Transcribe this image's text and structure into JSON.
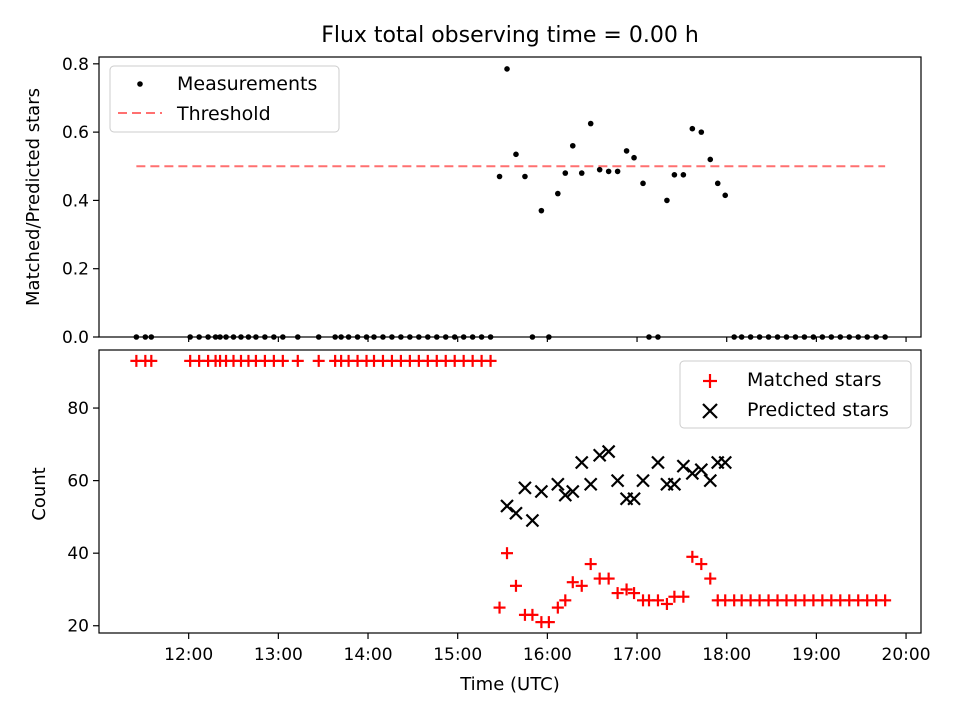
{
  "chart_data": [
    {
      "type": "scatter",
      "title": "Flux total observing time = 0.00 h",
      "ylabel": "Matched/Predicted stars",
      "xlim": [
        "11:00",
        "20:10"
      ],
      "ylim": [
        0,
        0.82
      ],
      "yticks": [
        "0.0",
        "0.2",
        "0.4",
        "0.6",
        "0.8"
      ],
      "grid": false,
      "legend_position": "top-left",
      "series": [
        {
          "name": "Measurements",
          "marker": "dot",
          "color": "#000000",
          "x": [
            "11:25",
            "11:31",
            "11:35",
            "12:01",
            "12:07",
            "12:13",
            "12:18",
            "12:21",
            "12:25",
            "12:30",
            "12:35",
            "12:40",
            "12:45",
            "12:51",
            "12:57",
            "13:03",
            "13:13",
            "13:27",
            "13:38",
            "13:42",
            "13:47",
            "13:53",
            "13:59",
            "14:04",
            "14:10",
            "14:16",
            "14:22",
            "14:28",
            "14:34",
            "14:40",
            "14:46",
            "14:52",
            "14:58",
            "15:04",
            "15:10",
            "15:16",
            "15:22",
            "15:28",
            "15:33",
            "15:39",
            "15:45",
            "15:50",
            "15:56",
            "16:01",
            "16:07",
            "16:12",
            "16:17",
            "16:23",
            "16:29",
            "16:35",
            "16:41",
            "16:47",
            "16:53",
            "16:58",
            "17:04",
            "17:08",
            "17:14",
            "17:20",
            "17:25",
            "17:31",
            "17:37",
            "17:43",
            "17:49",
            "17:54",
            "17:59",
            "18:05",
            "18:10",
            "18:16",
            "18:22",
            "18:28",
            "18:34",
            "18:40",
            "18:46",
            "18:52",
            "18:58",
            "19:04",
            "19:10",
            "19:16",
            "19:22",
            "19:28",
            "19:34",
            "19:40",
            "19:46"
          ],
          "y": [
            0,
            0,
            0,
            0,
            0,
            0,
            0,
            0,
            0,
            0,
            0,
            0,
            0,
            0,
            0,
            0,
            0,
            0,
            0,
            0,
            0,
            0,
            0,
            0,
            0,
            0,
            0,
            0,
            0,
            0,
            0,
            0,
            0,
            0,
            0,
            0,
            0,
            0.47,
            0.785,
            0.535,
            0.47,
            0,
            0.37,
            0,
            0.42,
            0.48,
            0.56,
            0.48,
            0.625,
            0.49,
            0.485,
            0.485,
            0.545,
            0.525,
            0.45,
            0,
            0,
            0.4,
            0.475,
            0.475,
            0.61,
            0.6,
            0.52,
            0.45,
            0.415,
            0,
            0,
            0,
            0,
            0,
            0,
            0,
            0,
            0,
            0,
            0,
            0,
            0,
            0,
            0,
            0,
            0,
            0
          ]
        },
        {
          "name": "Threshold",
          "marker": "dashed-line",
          "color": "#ff7070",
          "x": [
            "11:25",
            "19:46"
          ],
          "y": [
            0.5,
            0.5
          ]
        }
      ]
    },
    {
      "type": "scatter",
      "xlabel": "Time (UTC)",
      "ylabel": "Count",
      "xlim": [
        "11:00",
        "20:10"
      ],
      "ylim": [
        18,
        96
      ],
      "xticks": [
        "12:00",
        "13:00",
        "14:00",
        "15:00",
        "16:00",
        "17:00",
        "18:00",
        "19:00",
        "20:00"
      ],
      "yticks": [
        "20",
        "40",
        "60",
        "80"
      ],
      "grid": false,
      "legend_position": "top-right",
      "series": [
        {
          "name": "Matched stars",
          "marker": "plus",
          "color": "#ff0000",
          "x": [
            "11:25",
            "11:31",
            "11:35",
            "12:01",
            "12:07",
            "12:13",
            "12:18",
            "12:21",
            "12:25",
            "12:30",
            "12:35",
            "12:40",
            "12:45",
            "12:51",
            "12:57",
            "13:03",
            "13:13",
            "13:27",
            "13:38",
            "13:42",
            "13:47",
            "13:53",
            "13:59",
            "14:04",
            "14:10",
            "14:16",
            "14:22",
            "14:28",
            "14:34",
            "14:40",
            "14:46",
            "14:52",
            "14:58",
            "15:04",
            "15:10",
            "15:16",
            "15:22",
            "15:28",
            "15:33",
            "15:39",
            "15:45",
            "15:50",
            "15:56",
            "16:01",
            "16:07",
            "16:12",
            "16:17",
            "16:23",
            "16:29",
            "16:35",
            "16:41",
            "16:47",
            "16:53",
            "16:58",
            "17:04",
            "17:08",
            "17:14",
            "17:20",
            "17:25",
            "17:31",
            "17:37",
            "17:43",
            "17:49",
            "17:54",
            "17:59",
            "18:05",
            "18:10",
            "18:16",
            "18:22",
            "18:28",
            "18:34",
            "18:40",
            "18:46",
            "18:52",
            "18:58",
            "19:04",
            "19:10",
            "19:16",
            "19:22",
            "19:28",
            "19:34",
            "19:40",
            "19:46"
          ],
          "y": [
            93,
            93,
            93,
            93,
            93,
            93,
            93,
            93,
            93,
            93,
            93,
            93,
            93,
            93,
            93,
            93,
            93,
            93,
            93,
            93,
            93,
            93,
            93,
            93,
            93,
            93,
            93,
            93,
            93,
            93,
            93,
            93,
            93,
            93,
            93,
            93,
            93,
            25,
            40,
            31,
            23,
            23,
            21,
            21,
            25,
            27,
            32,
            31,
            37,
            33,
            33,
            29,
            30,
            29,
            27,
            27,
            27,
            26,
            28,
            28,
            39,
            37,
            33,
            27,
            27,
            27,
            27,
            27,
            27,
            27,
            27,
            27,
            27,
            27,
            27,
            27,
            27,
            27,
            27,
            27,
            27,
            27,
            27
          ]
        },
        {
          "name": "Predicted stars",
          "marker": "x",
          "color": "#000000",
          "x": [
            "15:33",
            "15:39",
            "15:45",
            "15:50",
            "15:56",
            "16:07",
            "16:12",
            "16:17",
            "16:23",
            "16:29",
            "16:35",
            "16:41",
            "16:47",
            "16:53",
            "16:58",
            "17:04",
            "17:14",
            "17:20",
            "17:25",
            "17:31",
            "17:37",
            "17:43",
            "17:49",
            "17:54",
            "17:59"
          ],
          "y": [
            53,
            51,
            58,
            49,
            57,
            59,
            56,
            57,
            65,
            59,
            67,
            68,
            60,
            55,
            55,
            60,
            65,
            59,
            59,
            64,
            62,
            63,
            60,
            65,
            65
          ]
        }
      ]
    }
  ]
}
